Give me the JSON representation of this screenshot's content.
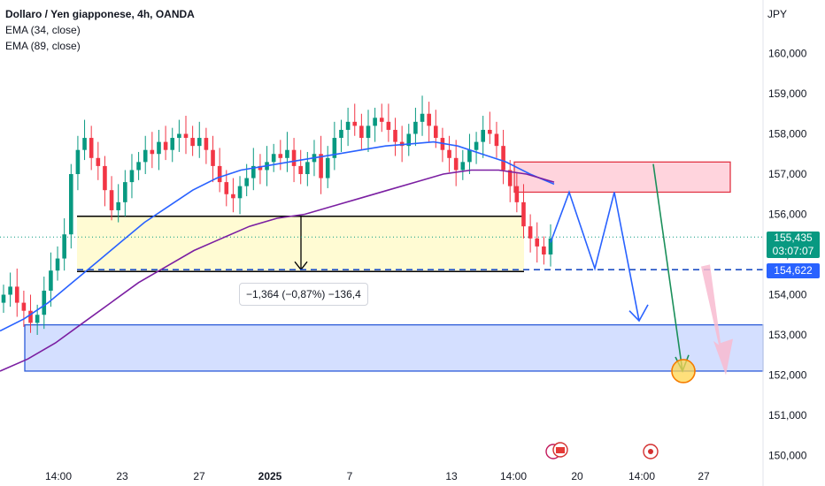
{
  "legend": {
    "title": "Dollaro / Yen giapponese, 4h, OANDA",
    "ema1": "EMA (34, close)",
    "ema2": "EMA (89, close)"
  },
  "currency": "JPY",
  "price_tags": {
    "current_price": "155,435",
    "countdown": "03:07:07",
    "level_price": "154,622"
  },
  "measure_label": "−1,364 (−0,87%) −136,4",
  "colors": {
    "up": "#089981",
    "down": "#f23645",
    "ema34": "#2962ff",
    "ema89": "#7b1fa2",
    "green_tag": "#089981",
    "blue_tag": "#2962ff"
  },
  "chart_data": {
    "type": "line",
    "title": "Dollaro / Yen giapponese, 4h, OANDA",
    "y_axis": {
      "ticks": [
        150000,
        151000,
        152000,
        153000,
        154000,
        155000,
        156000,
        157000,
        158000,
        159000,
        160000
      ],
      "tick_labels": [
        "150,000",
        "151,000",
        "152,000",
        "153,000",
        "154,000",
        "155,000",
        "156,000",
        "157,000",
        "158,000",
        "159,000",
        "160,000"
      ],
      "range": [
        149700,
        161000
      ]
    },
    "x_axis": {
      "tick_labels": [
        "14:00",
        "23",
        "27",
        "2025",
        "7",
        "13",
        "14:00",
        "20",
        "14:00",
        "27"
      ]
    },
    "price_series": [
      154.0,
      154.2,
      153.8,
      153.6,
      153.3,
      153.5,
      154.1,
      154.6,
      154.9,
      155.5,
      157.0,
      157.6,
      157.9,
      157.4,
      157.2,
      156.6,
      156.1,
      156.3,
      156.8,
      157.1,
      157.3,
      157.6,
      157.5,
      157.8,
      157.6,
      157.9,
      158.0,
      157.9,
      157.7,
      157.9,
      157.6,
      157.2,
      156.8,
      156.5,
      156.4,
      156.7,
      156.9,
      157.2,
      157.1,
      157.3,
      157.5,
      157.4,
      157.6,
      157.2,
      157.0,
      157.3,
      157.5,
      156.9,
      157.4,
      157.9,
      158.1,
      158.3,
      158.2,
      157.9,
      158.2,
      158.4,
      158.3,
      158.1,
      157.8,
      157.7,
      158.0,
      158.3,
      158.5,
      158.2,
      157.9,
      157.6,
      157.4,
      157.1,
      157.3,
      157.6,
      157.8,
      158.1,
      158.0,
      157.7,
      157.1,
      156.7,
      156.3,
      155.7,
      155.4,
      155.2,
      155.0,
      155.4
    ],
    "series": [
      {
        "name": "EMA (34, close)",
        "values": [
          153.1,
          153.4,
          153.8,
          154.3,
          154.8,
          155.3,
          155.8,
          156.2,
          156.6,
          156.9,
          157.1,
          157.2,
          157.3,
          157.4,
          157.5,
          157.6,
          157.7,
          157.75,
          157.8,
          157.7,
          157.5,
          157.3,
          157.0,
          156.75
        ]
      },
      {
        "name": "EMA (89, close)",
        "values": [
          152.1,
          152.4,
          152.8,
          153.3,
          153.8,
          154.3,
          154.7,
          155.1,
          155.4,
          155.7,
          155.9,
          156.0,
          156.2,
          156.4,
          156.6,
          156.8,
          157.0,
          157.1,
          157.1,
          157.0,
          156.8
        ]
      }
    ],
    "annotations": {
      "resistance_zone": [
        156.55,
        157.3
      ],
      "target_zone": [
        152.1,
        153.25
      ],
      "range_box": [
        154.6,
        155.95
      ],
      "range_move": "−1,364 (−0,87%) −136,4",
      "dashed_level": 154.622
    },
    "grid": false,
    "legend_position": "top-left"
  }
}
